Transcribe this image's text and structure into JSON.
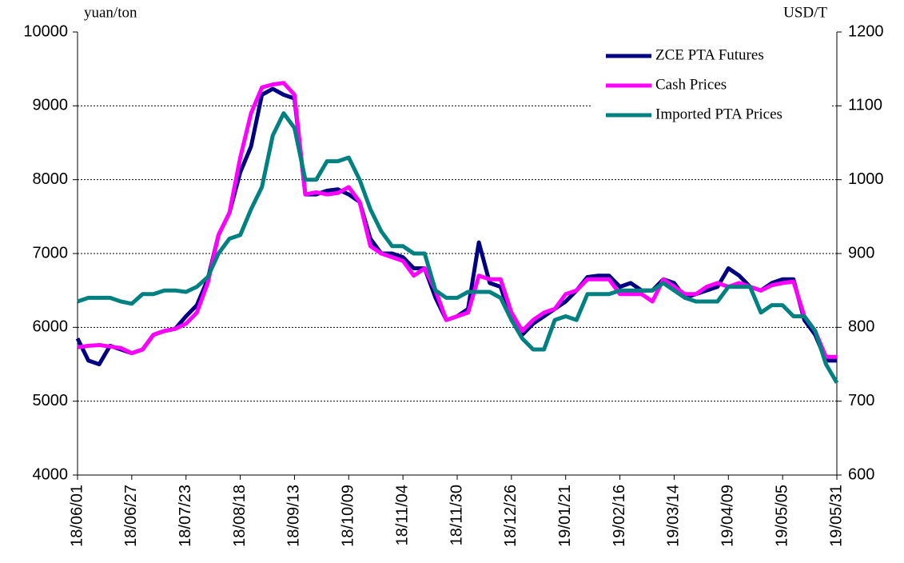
{
  "chart_data": {
    "type": "line",
    "y_label": "yuan/ton",
    "y2_label": "USD/T",
    "categories": [
      "18/06/01",
      null,
      null,
      null,
      null,
      "18/06/27",
      null,
      null,
      null,
      null,
      "18/07/23",
      null,
      null,
      null,
      null,
      "18/08/18",
      null,
      null,
      null,
      null,
      "18/09/13",
      null,
      null,
      null,
      null,
      "18/10/09",
      null,
      null,
      null,
      null,
      "18/11/04",
      null,
      null,
      null,
      null,
      "18/11/30",
      null,
      null,
      null,
      null,
      "18/12/26",
      null,
      null,
      null,
      null,
      "19/01/21",
      null,
      null,
      null,
      null,
      "19/02/16",
      null,
      null,
      null,
      null,
      "19/03/14",
      null,
      null,
      null,
      null,
      "19/04/09",
      null,
      null,
      null,
      null,
      "19/05/05",
      null,
      null,
      null,
      null,
      "19/05/31"
    ],
    "series": [
      {
        "name": "ZCE PTA Futures",
        "color": "#000080",
        "values": [
          5850,
          5550,
          5500,
          5750,
          5700,
          5650,
          5700,
          5900,
          5950,
          5980,
          6150,
          6300,
          6650,
          7250,
          7550,
          8100,
          8450,
          9150,
          9230,
          9150,
          9100,
          7800,
          7800,
          7850,
          7870,
          7800,
          7700,
          7200,
          7000,
          7000,
          6950,
          6800,
          6800,
          6400,
          6100,
          6150,
          6250,
          7150,
          6600,
          6550,
          6100,
          5900,
          6050,
          6150,
          6250,
          6350,
          6500,
          6680,
          6700,
          6700,
          6550,
          6600,
          6500,
          6500,
          6650,
          6600,
          6400,
          6450,
          6500,
          6550,
          6800,
          6700,
          6550,
          6500,
          6600,
          6650,
          6650,
          6100,
          5900,
          5550,
          5550
        ]
      },
      {
        "name": "Cash Prices",
        "color": "#ff00ff",
        "values": [
          5730,
          5750,
          5760,
          5740,
          5720,
          5650,
          5700,
          5900,
          5950,
          5980,
          6050,
          6200,
          6600,
          7250,
          7550,
          8300,
          8900,
          9250,
          9290,
          9310,
          9150,
          7800,
          7830,
          7800,
          7820,
          7900,
          7700,
          7100,
          7000,
          6950,
          6900,
          6700,
          6800,
          6500,
          6100,
          6150,
          6200,
          6700,
          6650,
          6650,
          6200,
          5950,
          6100,
          6200,
          6250,
          6450,
          6500,
          6650,
          6650,
          6650,
          6450,
          6450,
          6450,
          6350,
          6650,
          6550,
          6450,
          6450,
          6550,
          6600,
          6550,
          6600,
          6550,
          6500,
          6570,
          6600,
          6620,
          6150,
          5950,
          5600,
          5600
        ]
      },
      {
        "name": "Imported PTA Prices",
        "color": "#008080",
        "axis": "y2",
        "values": [
          835,
          840,
          840,
          840,
          835,
          832,
          845,
          845,
          850,
          850,
          848,
          855,
          868,
          900,
          920,
          925,
          960,
          990,
          1060,
          1090,
          1070,
          1000,
          1000,
          1025,
          1025,
          1030,
          1000,
          960,
          930,
          910,
          910,
          900,
          900,
          850,
          840,
          840,
          848,
          848,
          848,
          840,
          810,
          785,
          770,
          770,
          810,
          815,
          810,
          845,
          845,
          845,
          850,
          850,
          850,
          850,
          860,
          850,
          840,
          835,
          835,
          835,
          855,
          855,
          855,
          820,
          830,
          830,
          815,
          815,
          795,
          750,
          725
        ]
      }
    ],
    "ylim": [
      4000,
      10000
    ],
    "yticks": [
      4000,
      5000,
      6000,
      7000,
      8000,
      9000,
      10000
    ],
    "y2lim": [
      600,
      1200
    ],
    "y2ticks": [
      600,
      700,
      800,
      900,
      1000,
      1100,
      1200
    ],
    "grid": true,
    "legend": "upper right"
  }
}
